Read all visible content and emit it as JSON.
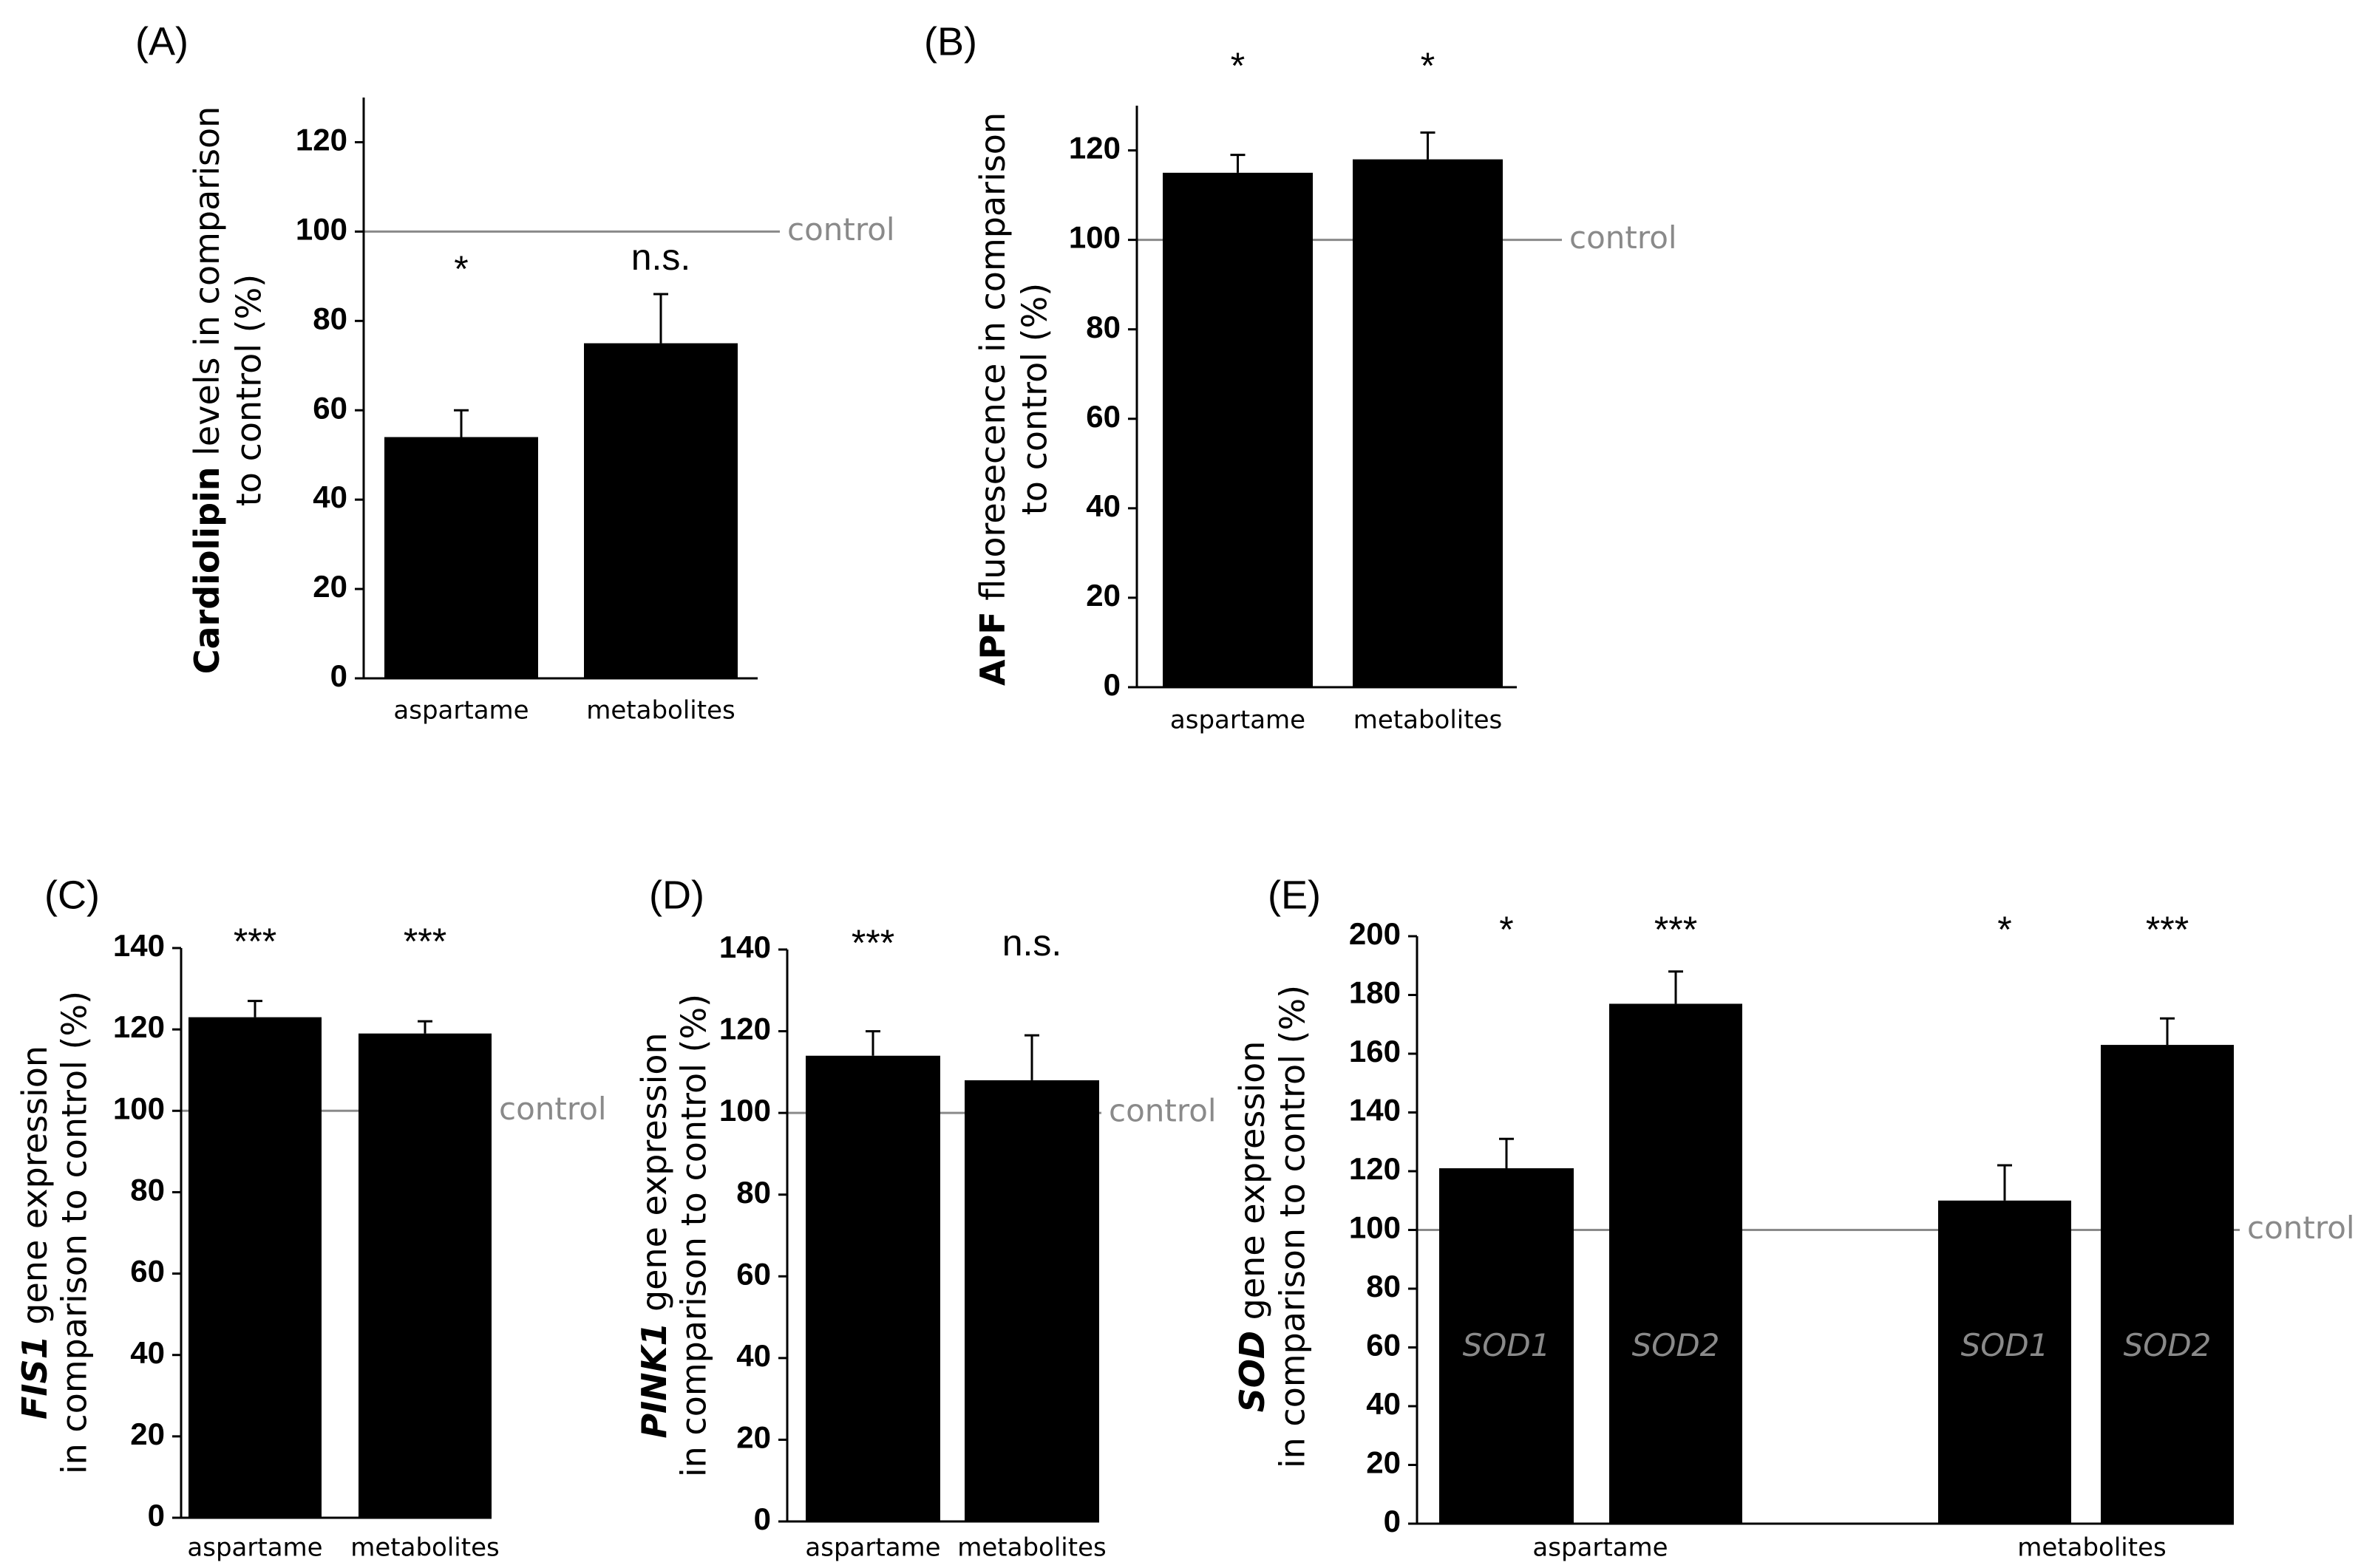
{
  "chart_data": [
    {
      "panel": "(A)",
      "type": "bar",
      "categories": [
        "aspartame",
        "metabolites"
      ],
      "values": [
        54,
        75
      ],
      "errors": [
        6,
        11
      ],
      "significance": [
        "*",
        "n.s."
      ],
      "ylim": [
        0,
        130
      ],
      "yticks": [
        0,
        20,
        40,
        60,
        80,
        100,
        120
      ],
      "ylabel_bold": "Cardiolipin",
      "ylabel_line1_rest": " levels in comparison",
      "ylabel_line2": "to control (%)",
      "control_value": 100,
      "control_label": "control"
    },
    {
      "panel": "(B)",
      "type": "bar",
      "categories": [
        "aspartame",
        "metabolites"
      ],
      "values": [
        115,
        118
      ],
      "errors": [
        4,
        6
      ],
      "significance": [
        "*",
        "*"
      ],
      "ylim": [
        0,
        130
      ],
      "yticks": [
        0,
        20,
        40,
        60,
        80,
        100,
        120
      ],
      "ylabel_bold": "APF",
      "ylabel_line1_rest": " fluoresecence in comparison",
      "ylabel_line2": "to control (%)",
      "control_value": 100,
      "control_label": "control"
    },
    {
      "panel": "(C)",
      "type": "bar",
      "categories": [
        "aspartame",
        "metabolites"
      ],
      "values": [
        123,
        119
      ],
      "errors": [
        4,
        3
      ],
      "significance": [
        "***",
        "***"
      ],
      "ylim": [
        0,
        140
      ],
      "yticks": [
        0,
        20,
        40,
        60,
        80,
        100,
        120,
        140
      ],
      "ylabel_bold": "FIS1",
      "ylabel_line1_rest": " gene expression",
      "ylabel_line2": "in comparison to control (%)",
      "control_value": 100,
      "control_label": "control"
    },
    {
      "panel": "(D)",
      "type": "bar",
      "categories": [
        "aspartame",
        "metabolites"
      ],
      "values": [
        114,
        108
      ],
      "errors": [
        6,
        11
      ],
      "significance": [
        "***",
        "n.s."
      ],
      "ylim": [
        0,
        140
      ],
      "yticks": [
        0,
        20,
        40,
        60,
        80,
        100,
        120,
        140
      ],
      "ylabel_bold": "PINK1",
      "ylabel_line1_rest": " gene expression",
      "ylabel_line2": "in comparison to control (%)",
      "control_value": 100,
      "control_label": "control"
    },
    {
      "panel": "(E)",
      "type": "bar",
      "categories": [
        "aspartame",
        "metabolites"
      ],
      "series": [
        {
          "name": "SOD1",
          "values": [
            121,
            110
          ],
          "errors": [
            10,
            12
          ],
          "significance": [
            "*",
            "*"
          ]
        },
        {
          "name": "SOD2",
          "values": [
            177,
            163
          ],
          "errors": [
            11,
            9
          ],
          "significance": [
            "***",
            "***"
          ]
        }
      ],
      "ylim": [
        0,
        200
      ],
      "yticks": [
        0,
        20,
        40,
        60,
        80,
        100,
        120,
        140,
        160,
        180,
        200
      ],
      "ylabel_bold": "SOD",
      "ylabel_line1_rest": " gene expression",
      "ylabel_line2": "in comparison to control (%)",
      "control_value": 100,
      "control_label": "control"
    }
  ]
}
